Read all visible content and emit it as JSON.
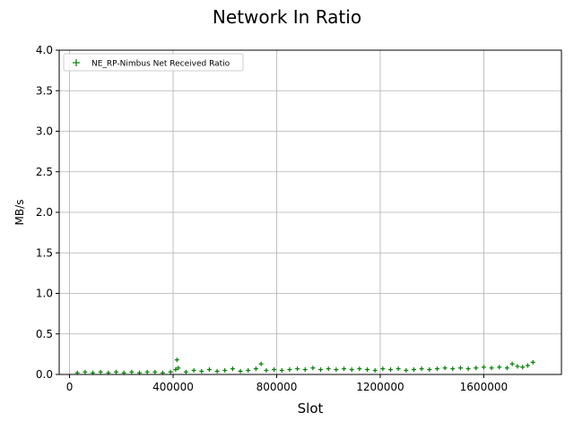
{
  "chart_data": {
    "type": "scatter",
    "title": "Network In Ratio",
    "xlabel": "Slot",
    "ylabel": "MB/s",
    "xlim": [
      -40000,
      1900000
    ],
    "ylim": [
      0,
      4.0
    ],
    "xticks": [
      0,
      400000,
      800000,
      1200000,
      1600000
    ],
    "xtick_labels": [
      "0",
      "400000",
      "800000",
      "1200000",
      "1600000"
    ],
    "yticks": [
      0.0,
      0.5,
      1.0,
      1.5,
      2.0,
      2.5,
      3.0,
      3.5,
      4.0
    ],
    "ytick_labels": [
      "0.0",
      "0.5",
      "1.0",
      "1.5",
      "2.0",
      "2.5",
      "3.0",
      "3.5",
      "4.0"
    ],
    "grid": true,
    "legend_position": "top-left",
    "series": [
      {
        "name": "NE_RP-Nimbus Net Received Ratio",
        "color": "#008000",
        "marker": "plus",
        "x": [
          30000,
          60000,
          90000,
          120000,
          150000,
          180000,
          210000,
          240000,
          270000,
          300000,
          330000,
          360000,
          390000,
          410000,
          415000,
          420000,
          450000,
          480000,
          510000,
          540000,
          570000,
          600000,
          630000,
          660000,
          690000,
          720000,
          740000,
          760000,
          790000,
          820000,
          850000,
          880000,
          910000,
          940000,
          970000,
          1000000,
          1030000,
          1060000,
          1090000,
          1120000,
          1150000,
          1180000,
          1210000,
          1240000,
          1270000,
          1300000,
          1330000,
          1360000,
          1390000,
          1420000,
          1450000,
          1480000,
          1510000,
          1540000,
          1570000,
          1600000,
          1630000,
          1660000,
          1690000,
          1710000,
          1730000,
          1750000,
          1770000,
          1790000
        ],
        "y": [
          0.02,
          0.03,
          0.02,
          0.03,
          0.02,
          0.03,
          0.02,
          0.03,
          0.02,
          0.03,
          0.03,
          0.02,
          0.03,
          0.06,
          0.18,
          0.08,
          0.03,
          0.05,
          0.04,
          0.06,
          0.04,
          0.05,
          0.07,
          0.04,
          0.05,
          0.07,
          0.13,
          0.05,
          0.06,
          0.05,
          0.06,
          0.07,
          0.06,
          0.08,
          0.06,
          0.07,
          0.06,
          0.07,
          0.06,
          0.07,
          0.06,
          0.05,
          0.07,
          0.06,
          0.07,
          0.05,
          0.06,
          0.07,
          0.06,
          0.07,
          0.08,
          0.07,
          0.08,
          0.07,
          0.08,
          0.09,
          0.08,
          0.09,
          0.08,
          0.13,
          0.1,
          0.09,
          0.11,
          0.15
        ]
      }
    ]
  }
}
